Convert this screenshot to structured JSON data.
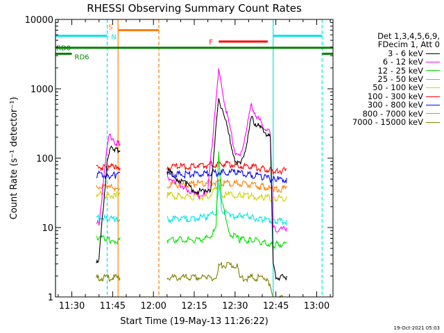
{
  "chart_data": {
    "type": "line",
    "title": "RHESSI Observing Summary Count Rates",
    "xlabel": "Start Time (19-May-13 11:26:22)",
    "ylabel": "Count Rate (s⁻¹ detector⁻¹)",
    "xlim": [
      "11:24",
      "13:06"
    ],
    "ylim": [
      1,
      10000
    ],
    "yscale": "log",
    "grid": false,
    "legend_position": "right",
    "x_ticks": [
      "11:30",
      "11:45",
      "12:00",
      "12:15",
      "12:30",
      "12:45",
      "13:00"
    ],
    "y_ticks": [
      "1",
      "10",
      "100",
      "1000",
      "10000"
    ],
    "legend_header": [
      "Det 1,3,4,5,6,9,",
      "FDecim 1, Att 0"
    ],
    "data_gaps": [
      [
        "11:24",
        "11:39"
      ],
      [
        "11:48",
        "12:05"
      ],
      [
        "12:49",
        "13:06"
      ]
    ],
    "flags": [
      {
        "label": "RD0",
        "color": "#008000",
        "y": 3900,
        "segments": [
          [
            "11:24",
            "13:06"
          ]
        ]
      },
      {
        "label": "RD6",
        "color": "#008000",
        "y": 3200,
        "segments": [
          [
            "11:24",
            "11:30"
          ],
          [
            "13:02",
            "13:06"
          ]
        ]
      },
      {
        "label": "F",
        "color": "#ff0000",
        "y": 4800,
        "segments": [
          [
            "12:24",
            "12:42"
          ]
        ]
      },
      {
        "label": "S",
        "color": "#ff8000",
        "y": 7000,
        "segments": [
          [
            "11:47",
            "12:02"
          ]
        ]
      },
      {
        "label": "N",
        "color": "#00e5e5",
        "y": 5800,
        "segments": [
          [
            "11:24",
            "11:43"
          ],
          [
            "12:44",
            "13:02"
          ]
        ]
      }
    ],
    "vertical_lines": [
      {
        "x": "11:24",
        "color": "#00e5e5",
        "style": "solid"
      },
      {
        "x": "11:43",
        "color": "#00e5e5",
        "style": "dashed"
      },
      {
        "x": "11:47",
        "color": "#ff8000",
        "style": "solid"
      },
      {
        "x": "12:02",
        "color": "#ff8000",
        "style": "dashed"
      },
      {
        "x": "12:44",
        "color": "#00e5e5",
        "style": "solid"
      },
      {
        "x": "13:02",
        "color": "#00e5e5",
        "style": "dashed"
      }
    ],
    "series": [
      {
        "name": "3 - 6 keV",
        "color": "#000000",
        "x": [
          "11:39",
          "11:40",
          "11:43",
          "11:44",
          "11:45",
          "11:46",
          "11:47",
          "11:48",
          "12:05",
          "12:08",
          "12:12",
          "12:15",
          "12:19",
          "12:21",
          "12:23",
          "12:24",
          "12:27",
          "12:30",
          "12:32",
          "12:34",
          "12:36",
          "12:38",
          "12:40",
          "12:42",
          "12:43",
          "12:44",
          "12:45",
          "12:49"
        ],
        "y": [
          3.5,
          3.8,
          100,
          140,
          150,
          140,
          140,
          135,
          70,
          55,
          45,
          36,
          34,
          37,
          300,
          800,
          300,
          100,
          85,
          150,
          400,
          320,
          270,
          230,
          200,
          3,
          2,
          2
        ]
      },
      {
        "name": "6 - 12 keV",
        "color": "#ff00ff",
        "x": [
          "11:39",
          "11:40",
          "11:43",
          "11:44",
          "11:45",
          "11:46",
          "11:47",
          "11:48",
          "12:05",
          "12:08",
          "12:12",
          "12:15",
          "12:17",
          "12:20",
          "12:23",
          "12:24",
          "12:26",
          "12:28",
          "12:30",
          "12:32",
          "12:34",
          "12:36",
          "12:38",
          "12:40",
          "12:42",
          "12:43",
          "12:44",
          "12:45",
          "12:49"
        ],
        "y": [
          12,
          12,
          150,
          250,
          190,
          180,
          175,
          170,
          60,
          48,
          40,
          32,
          30,
          33,
          800,
          2000,
          700,
          300,
          130,
          110,
          260,
          600,
          420,
          330,
          270,
          230,
          10,
          10,
          10
        ]
      },
      {
        "name": "12 - 25 keV",
        "color": "#00e000",
        "x": [
          "11:39",
          "11:43",
          "11:46",
          "11:48",
          "12:05",
          "12:10",
          "12:15",
          "12:20",
          "12:23",
          "12:24",
          "12:25",
          "12:28",
          "12:32",
          "12:36",
          "12:40",
          "12:44",
          "12:45",
          "12:49"
        ],
        "y": [
          8,
          7,
          7,
          7,
          7,
          7,
          7,
          7.5,
          10,
          140,
          25,
          9,
          7,
          7,
          6.5,
          6,
          6,
          6
        ]
      },
      {
        "name": "25 - 50 keV",
        "color": "#00e5e5",
        "x": [
          "11:39",
          "11:43",
          "11:46",
          "11:48",
          "12:05",
          "12:10",
          "12:15",
          "12:20",
          "12:23",
          "12:24",
          "12:25",
          "12:28",
          "12:32",
          "12:36",
          "12:40",
          "12:44",
          "12:45",
          "12:49"
        ],
        "y": [
          15,
          14,
          14,
          14,
          14,
          14,
          14.5,
          15,
          18,
          45,
          20,
          15,
          16,
          15,
          14,
          13,
          13,
          13
        ]
      },
      {
        "name": "50 - 100 keV",
        "color": "#d0d000",
        "x": [
          "11:39",
          "11:43",
          "11:46",
          "11:48",
          "12:05",
          "12:10",
          "12:15",
          "12:20",
          "12:24",
          "12:25",
          "12:28",
          "12:32",
          "12:36",
          "12:40",
          "12:44",
          "12:45",
          "12:49"
        ],
        "y": [
          32,
          31,
          31,
          31,
          31,
          30,
          29,
          29,
          42,
          31,
          31,
          31,
          30,
          29,
          28,
          28,
          28
        ]
      },
      {
        "name": "100 - 300 keV",
        "color": "#ff0000",
        "x": [
          "11:39",
          "11:43",
          "11:46",
          "11:48",
          "12:05",
          "12:10",
          "12:15",
          "12:20",
          "12:25",
          "12:30",
          "12:35",
          "12:40",
          "12:44",
          "12:45",
          "12:49"
        ],
        "y": [
          80,
          78,
          80,
          80,
          80,
          80,
          82,
          85,
          88,
          85,
          80,
          75,
          70,
          70,
          70
        ]
      },
      {
        "name": "300 - 800 keV",
        "color": "#0000ff",
        "x": [
          "11:39",
          "11:43",
          "11:46",
          "11:48",
          "12:05",
          "12:10",
          "12:15",
          "12:20",
          "12:25",
          "12:30",
          "12:35",
          "12:40",
          "12:44",
          "12:45",
          "12:49"
        ],
        "y": [
          62,
          60,
          60,
          60,
          62,
          62,
          62,
          64,
          66,
          66,
          62,
          57,
          52,
          52,
          52
        ]
      },
      {
        "name": "800 - 7000 keV",
        "color": "#ff8000",
        "x": [
          "11:39",
          "11:43",
          "11:46",
          "11:48",
          "12:05",
          "12:10",
          "12:15",
          "12:20",
          "12:25",
          "12:30",
          "12:35",
          "12:40",
          "12:44",
          "12:45",
          "12:49"
        ],
        "y": [
          42,
          40,
          40,
          40,
          43,
          44,
          45,
          47,
          47,
          46,
          44,
          41,
          38,
          38,
          38
        ]
      },
      {
        "name": "7000 - 15000 keV",
        "color": "#808000",
        "x": [
          "11:39",
          "11:40",
          "11:48",
          "12:05",
          "12:20",
          "12:23",
          "12:24",
          "12:31",
          "12:32",
          "12:42",
          "12:44",
          "12:49"
        ],
        "y": [
          2,
          2,
          2,
          2,
          2,
          2,
          3,
          3,
          2,
          2,
          1,
          1
        ]
      }
    ]
  },
  "legend": {
    "header": [
      "Det 1,3,4,5,6,9,",
      "FDecim 1, Att 0"
    ],
    "items": [
      {
        "label": "3 - 6 keV",
        "color": "#000000"
      },
      {
        "label": "6 - 12 keV",
        "color": "#ff00ff"
      },
      {
        "label": "12 - 25 keV",
        "color": "#00e000"
      },
      {
        "label": "25 - 50 keV",
        "color": "#00e5e5"
      },
      {
        "label": "50 - 100 keV",
        "color": "#d0d000"
      },
      {
        "label": "100 - 300 keV",
        "color": "#ff0000"
      },
      {
        "label": "300 - 800 keV",
        "color": "#0000ff"
      },
      {
        "label": "800 - 7000 keV",
        "color": "#ff8000"
      },
      {
        "label": "7000 - 15000 keV",
        "color": "#808000"
      }
    ]
  },
  "footer": {
    "timestamp": "19-Oct-2021 05:03"
  }
}
